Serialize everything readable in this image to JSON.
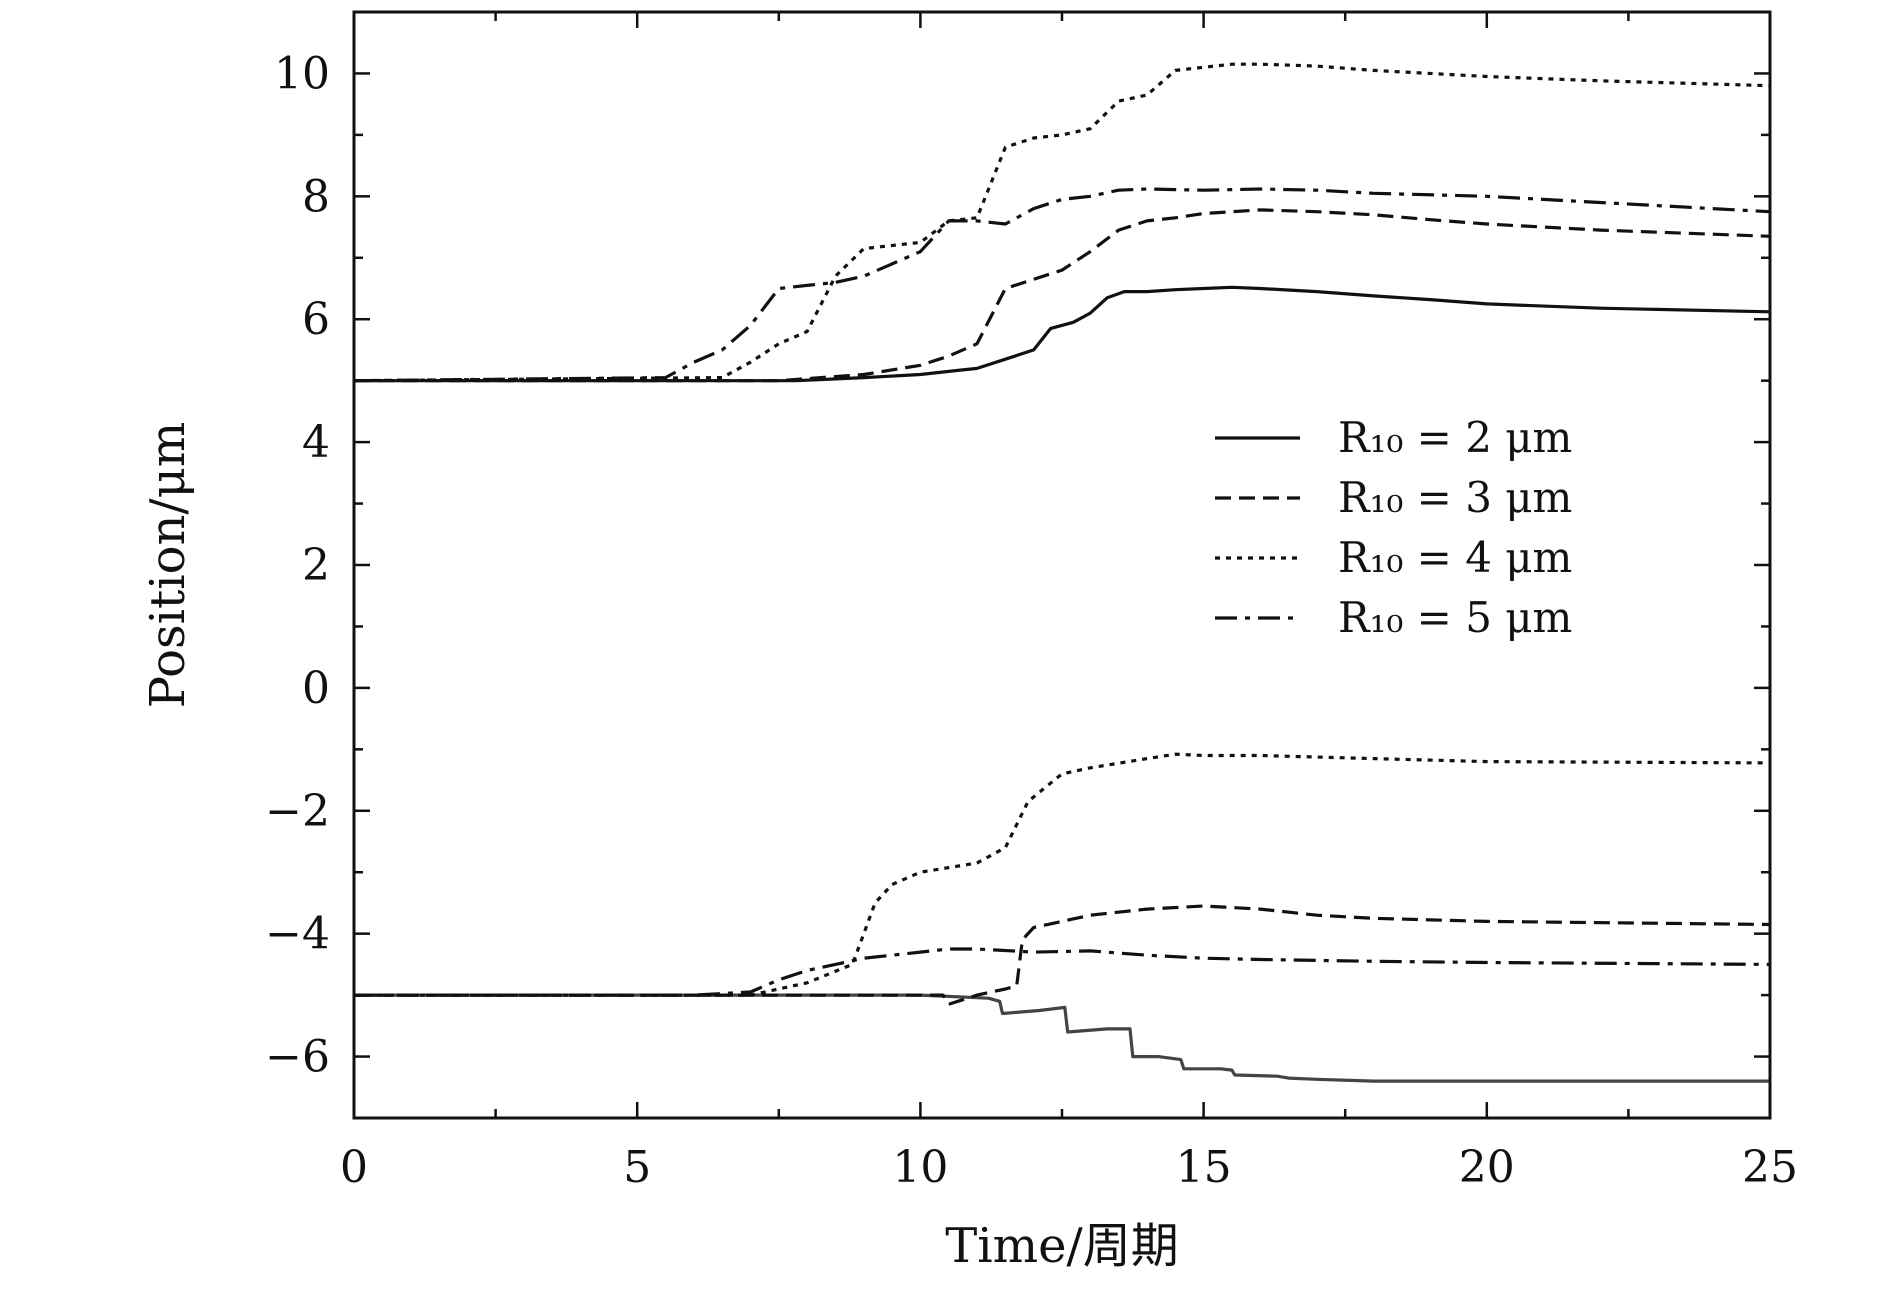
{
  "chart_data": {
    "type": "line",
    "title": "",
    "xlabel": "Time/周期",
    "ylabel": "Position/μm",
    "xlim": [
      0,
      25
    ],
    "ylim": [
      -7,
      11
    ],
    "xticks": [
      0,
      5,
      10,
      15,
      20,
      25
    ],
    "yticks": [
      -6,
      -4,
      -2,
      0,
      2,
      4,
      6,
      8,
      10
    ],
    "xtick_labels": [
      "0",
      "5",
      "10",
      "15",
      "20",
      "25"
    ],
    "ytick_labels": [
      "−6",
      "−4",
      "−2",
      "0",
      "2",
      "4",
      "6",
      "8",
      "10"
    ],
    "grid": false,
    "legend_position": "right-middle",
    "series": [
      {
        "name": "R10 = 2 μm (upper)",
        "legend_label": "R₁₀ = 2 μm",
        "style": "solid",
        "color": "#111111",
        "x": [
          0,
          7.8,
          9,
          10,
          10.5,
          11,
          11.5,
          12,
          12.3,
          12.7,
          13,
          13.3,
          13.6,
          14,
          14.5,
          15,
          15.5,
          16,
          17,
          18,
          19,
          20,
          22,
          25
        ],
        "y": [
          5,
          5,
          5.05,
          5.1,
          5.15,
          5.2,
          5.35,
          5.5,
          5.85,
          5.95,
          6.1,
          6.35,
          6.45,
          6.45,
          6.48,
          6.5,
          6.52,
          6.5,
          6.45,
          6.38,
          6.32,
          6.25,
          6.18,
          6.12
        ]
      },
      {
        "name": "R10 = 3 μm (upper)",
        "legend_label": "R₁₀ = 3 μm",
        "style": "dashed",
        "color": "#111111",
        "x": [
          0,
          7.5,
          9,
          10,
          10.5,
          11,
          11.5,
          12,
          12.5,
          13,
          13.5,
          14,
          14.5,
          15,
          15.5,
          16,
          17,
          18,
          19,
          20,
          22,
          25
        ],
        "y": [
          5,
          5,
          5.1,
          5.25,
          5.4,
          5.6,
          6.5,
          6.65,
          6.8,
          7.1,
          7.45,
          7.6,
          7.65,
          7.72,
          7.75,
          7.78,
          7.75,
          7.7,
          7.62,
          7.55,
          7.45,
          7.35
        ]
      },
      {
        "name": "R10 = 4 μm (upper)",
        "legend_label": "R₁₀ = 4 μm",
        "style": "dotted",
        "color": "#111111",
        "x": [
          0,
          6.5,
          7,
          7.5,
          8,
          8.5,
          9,
          9.5,
          10,
          10.5,
          11,
          11.5,
          12,
          12.5,
          13,
          13.5,
          14,
          14.5,
          15,
          15.5,
          16,
          17,
          18,
          20,
          22,
          25
        ],
        "y": [
          5,
          5.05,
          5.3,
          5.6,
          5.8,
          6.7,
          7.15,
          7.2,
          7.25,
          7.6,
          7.65,
          8.8,
          8.95,
          9.0,
          9.1,
          9.55,
          9.65,
          10.05,
          10.1,
          10.15,
          10.15,
          10.12,
          10.05,
          9.95,
          9.88,
          9.8
        ]
      },
      {
        "name": "R10 = 5 μm (upper)",
        "legend_label": "R₁₀ = 5 μm",
        "style": "dashdot",
        "color": "#111111",
        "x": [
          0,
          5.5,
          6,
          6.5,
          7,
          7.5,
          8,
          8.5,
          9,
          9.5,
          10,
          10.5,
          11,
          11.5,
          12,
          12.5,
          13,
          13.5,
          14,
          15,
          16,
          17,
          18,
          20,
          22,
          25
        ],
        "y": [
          5,
          5.05,
          5.3,
          5.5,
          5.9,
          6.5,
          6.55,
          6.6,
          6.7,
          6.9,
          7.1,
          7.6,
          7.6,
          7.55,
          7.8,
          7.95,
          8.0,
          8.1,
          8.12,
          8.1,
          8.12,
          8.1,
          8.05,
          8.0,
          7.9,
          7.75
        ]
      },
      {
        "name": "R10 = 2 μm (lower)",
        "style": "solid",
        "color": "#444444",
        "x": [
          0,
          10,
          11.2,
          11.4,
          11.45,
          12.1,
          12.55,
          12.6,
          13.3,
          13.7,
          13.75,
          14.2,
          14.6,
          14.65,
          15.3,
          15.5,
          15.55,
          16.3,
          16.5,
          17,
          18,
          20,
          25
        ],
        "y": [
          -5,
          -5,
          -5.05,
          -5.1,
          -5.3,
          -5.25,
          -5.2,
          -5.6,
          -5.55,
          -5.55,
          -6.0,
          -6.0,
          -6.05,
          -6.2,
          -6.2,
          -6.22,
          -6.3,
          -6.32,
          -6.35,
          -6.37,
          -6.4,
          -6.4,
          -6.4
        ]
      },
      {
        "name": "R10 = 3 μm (lower)",
        "style": "dashed",
        "color": "#111111",
        "x": [
          0,
          6,
          7,
          8,
          9,
          10,
          10.4,
          10.5,
          11,
          11.5,
          11.7,
          11.8,
          12,
          12.5,
          13,
          14,
          15,
          16,
          17,
          18,
          20,
          25
        ],
        "y": [
          -5,
          -5,
          -5,
          -5,
          -5,
          -5,
          -5.0,
          -5.15,
          -5.0,
          -4.9,
          -4.85,
          -4.1,
          -3.9,
          -3.8,
          -3.7,
          -3.6,
          -3.55,
          -3.6,
          -3.7,
          -3.75,
          -3.8,
          -3.85
        ]
      },
      {
        "name": "R10 = 4 μm (lower)",
        "style": "dotted",
        "color": "#111111",
        "x": [
          0,
          7,
          8,
          8.8,
          9,
          9.2,
          9.5,
          10,
          11,
          11.5,
          11.9,
          12.1,
          12.5,
          13,
          14,
          14.5,
          15,
          16,
          18,
          20,
          25
        ],
        "y": [
          -5,
          -5,
          -4.8,
          -4.5,
          -4.0,
          -3.5,
          -3.2,
          -3.0,
          -2.85,
          -2.6,
          -1.85,
          -1.7,
          -1.4,
          -1.3,
          -1.15,
          -1.08,
          -1.1,
          -1.1,
          -1.15,
          -1.2,
          -1.22
        ]
      },
      {
        "name": "R10 = 5 μm (lower)",
        "style": "dashdot",
        "color": "#111111",
        "x": [
          0,
          5.5,
          6,
          7,
          7.5,
          8,
          8.5,
          9,
          9.5,
          10,
          10.5,
          11,
          12,
          13,
          14,
          15,
          16,
          18,
          20,
          25
        ],
        "y": [
          -5,
          -5,
          -5,
          -4.95,
          -4.75,
          -4.6,
          -4.5,
          -4.4,
          -4.35,
          -4.3,
          -4.25,
          -4.25,
          -4.3,
          -4.28,
          -4.35,
          -4.4,
          -4.42,
          -4.45,
          -4.47,
          -4.5
        ]
      }
    ]
  }
}
